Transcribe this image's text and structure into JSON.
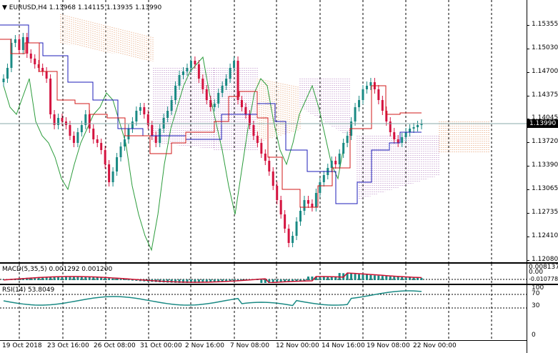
{
  "main": {
    "title": "EURUSD,H4  1.13968 1.14115 1.13935 1.13990",
    "price_labels": [
      "1.15355",
      "1.15030",
      "1.14700",
      "1.14375",
      "1.14045",
      "1.13720",
      "1.13390",
      "1.13065",
      "1.12735",
      "1.12410",
      "1.12080"
    ],
    "current_price": "1.13990"
  },
  "macd": {
    "title": "MACD(5,35,5) 0.001292 0.001200",
    "labels": [
      "0.008137",
      "0.00",
      "-0.010778"
    ]
  },
  "rsi": {
    "title": "RSI(14) 53.8049",
    "labels": [
      "100",
      "70",
      "30",
      "0"
    ]
  },
  "time_labels": [
    "19 Oct 2018",
    "23 Oct 16:00",
    "26 Oct 08:00",
    "31 Oct 00:00",
    "2 Nov 16:00",
    "7 Nov 08:00",
    "12 Nov 00:00",
    "14 Nov 16:00",
    "19 Nov 08:00",
    "22 Nov 00:00"
  ],
  "colors": {
    "bull": "#1a8a84",
    "bear": "#d4133f",
    "kijun": "#1c1cb8",
    "tenkan": "#d11919",
    "chikou": "#2c9c3c",
    "cloud_up": "#b680c0",
    "cloud_down": "#e39a6a",
    "signal": "#cc1030"
  }
}
